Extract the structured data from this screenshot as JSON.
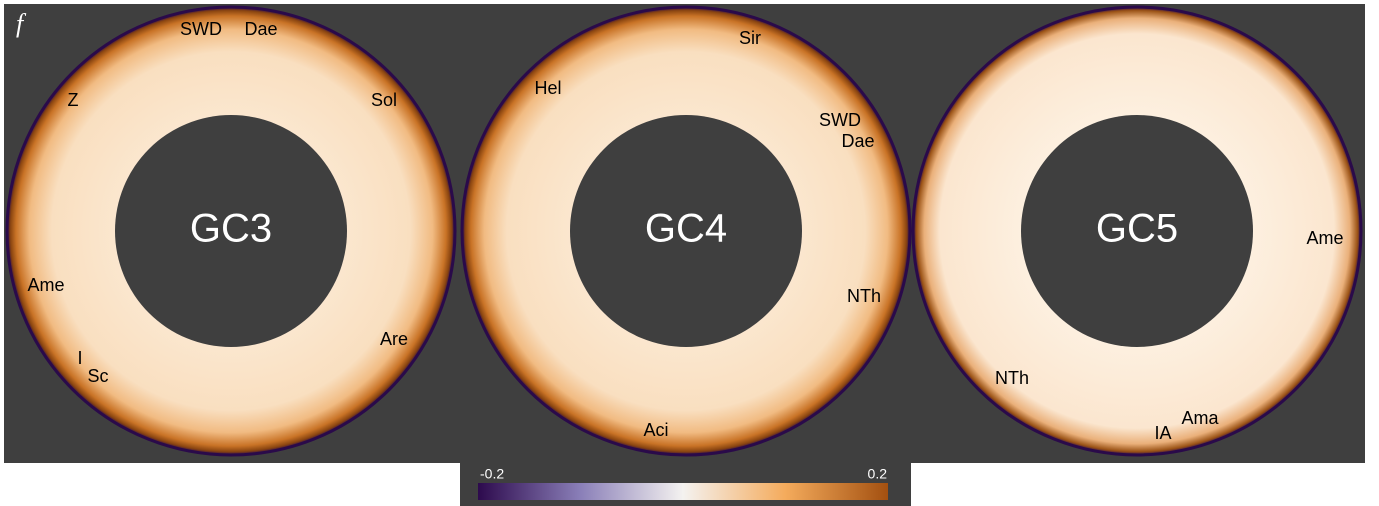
{
  "panel_label": "f",
  "panels": [
    {
      "name": "GC3",
      "labels": [
        "SWD",
        "Dae",
        "Z",
        "Sol",
        "Ame",
        "I",
        "Sc",
        "Are"
      ]
    },
    {
      "name": "GC4",
      "labels": [
        "Sir",
        "Hel",
        "SWD",
        "Dae",
        "NTh",
        "Aci"
      ]
    },
    {
      "name": "GC5",
      "labels": [
        "Ame",
        "NTh",
        "Ama",
        "IA"
      ]
    }
  ],
  "colorbar": {
    "min": -0.2,
    "max": 0.2
  }
}
